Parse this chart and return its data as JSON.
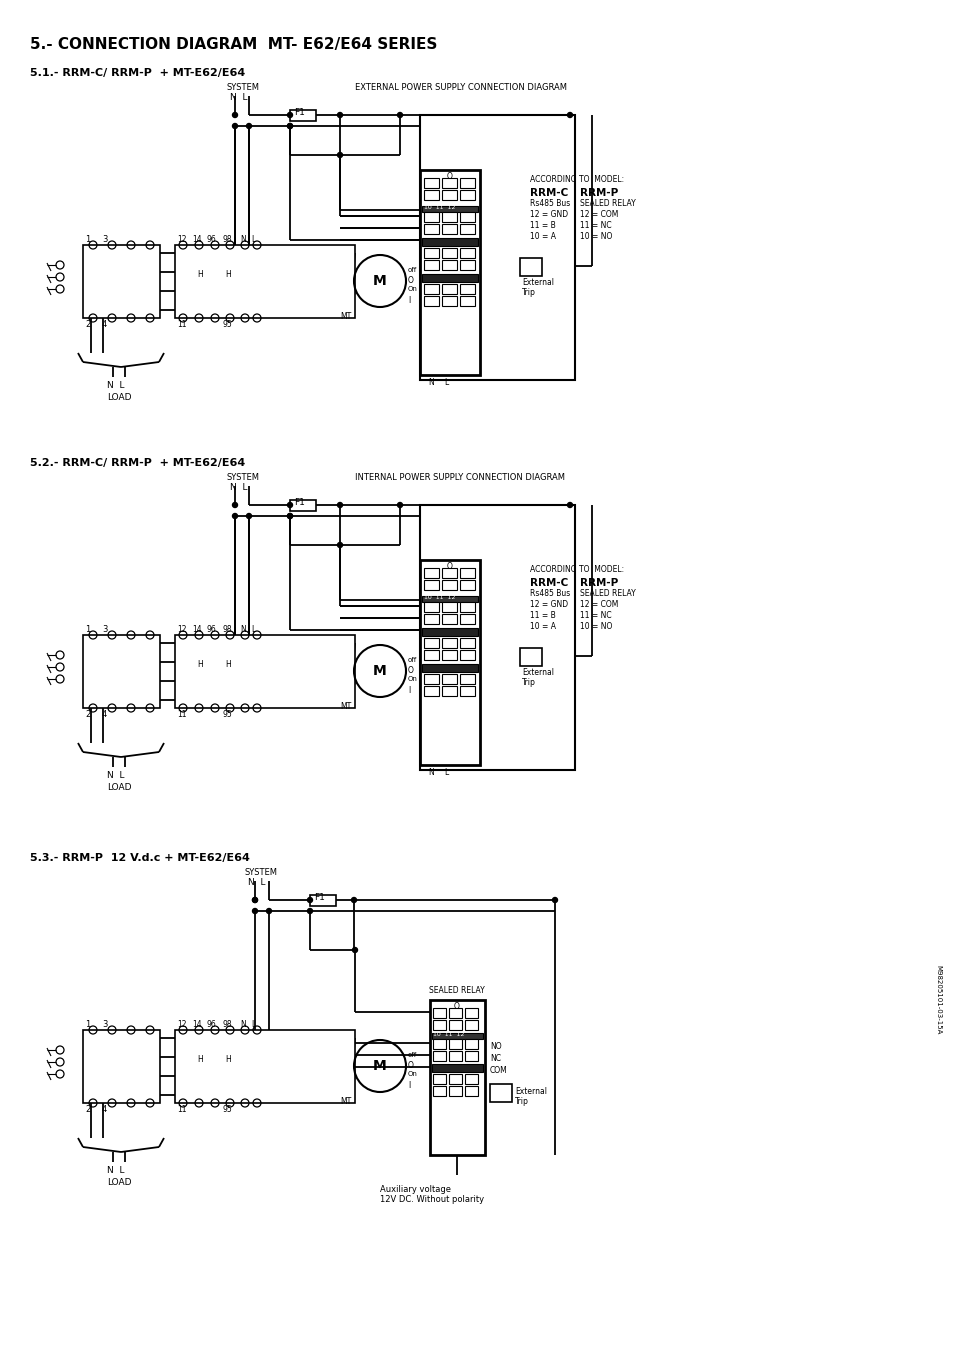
{
  "title": "5.- CONNECTION DIAGRAM  MT- E62/E64 SERIES",
  "s1_title": "5.1.- RRM-C/ RRM-P  + MT-E62/E64",
  "s2_title": "5.2.- RRM-C/ RRM-P  + MT-E62/E64",
  "s3_title": "5.3.- RRM-P  12 V.d.c + MT-E62/E64",
  "diag1_label": "EXTERNAL POWER SUPPLY CONNECTION DIAGRAM",
  "diag2_label": "INTERNAL POWER SUPPLY CONNECTION DIAGRAM",
  "system": "SYSTEM",
  "f1": "F1",
  "motor": "M",
  "mt": "MT",
  "off": "off",
  "on": "On",
  "h": "H",
  "nl": "N  L",
  "n": "N",
  "l": "L",
  "load": "LOAD",
  "according": "ACCORDING TO  MODEL:",
  "rrmc": "RRM-C",
  "rrmp": "RRM-P",
  "rs485": "Rs485 Bus",
  "sealed_relay": "SEALED RELAY",
  "r1c": "12 = GND",
  "r2c": "11 = B",
  "r3c": "10 = A",
  "r1p": "12 = COM",
  "r2p": "11 = NC",
  "r3p": "10 = NO",
  "ext_trip": "External\nTrip",
  "no": "NO",
  "nc": "NC",
  "com": "COM",
  "aux": "Auxiliary voltage\n12V DC. Without polarity",
  "sidebar": "M98205101-03-15A",
  "labels_top": [
    "12",
    "14",
    "96",
    "98",
    "N",
    "L"
  ],
  "labels_bot": [
    "11",
    "95"
  ],
  "labels_ctr": [
    "1",
    "3",
    "2",
    "4"
  ]
}
